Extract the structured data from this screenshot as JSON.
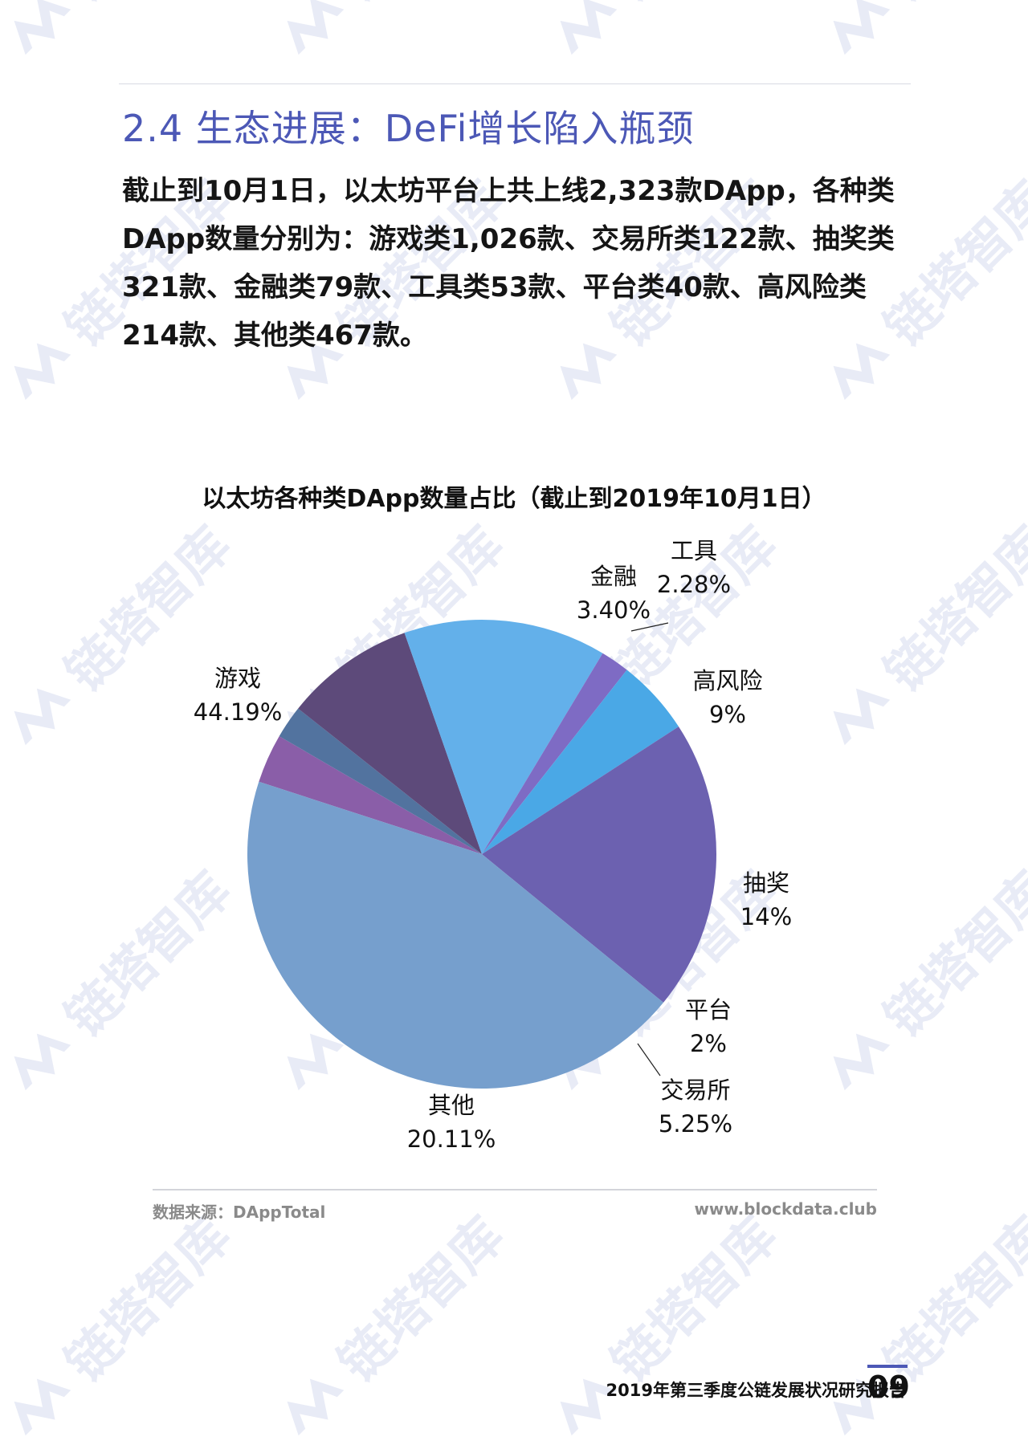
{
  "section_title": "2.4 生态进展：DeFi增长陷入瓶颈",
  "body_text": "截止到10月1日，以太坊平台上共上线2,323款DApp，各种类DApp数量分别为：游戏类1,026款、交易所类122款、抽奖类321款、金融类79款、工具类53款、平台类40款、高风险类214款、其他类467款。",
  "chart_data": {
    "type": "pie",
    "title": "以太坊各种类DApp数量占比（截止到2019年10月1日）",
    "slices": [
      {
        "name": "金融",
        "value": 3.4,
        "label": "3.40%",
        "color": "#8a5ea8"
      },
      {
        "name": "工具",
        "value": 2.28,
        "label": "2.28%",
        "color": "#52739f"
      },
      {
        "name": "高风险",
        "value": 9,
        "label": "9%",
        "color": "#5d4a7a"
      },
      {
        "name": "抽奖",
        "value": 14,
        "label": "14%",
        "color": "#63b0ea"
      },
      {
        "name": "平台",
        "value": 2,
        "label": "2%",
        "color": "#7e6bc4"
      },
      {
        "name": "交易所",
        "value": 5.25,
        "label": "5.25%",
        "color": "#4aa8e6"
      },
      {
        "name": "其他",
        "value": 20.11,
        "label": "20.11%",
        "color": "#6c61b0"
      },
      {
        "name": "游戏",
        "value": 44.19,
        "label": "44.19%",
        "color": "#769fcd"
      }
    ]
  },
  "footer": {
    "source": "数据来源：DAppTotal",
    "site": "www.blockdata.club",
    "report_title": "2019年第三季度公链发展状况研究报告",
    "page_number": "09"
  },
  "watermark": {
    "text": "链塔智库",
    "color": "#e8ebf6"
  }
}
